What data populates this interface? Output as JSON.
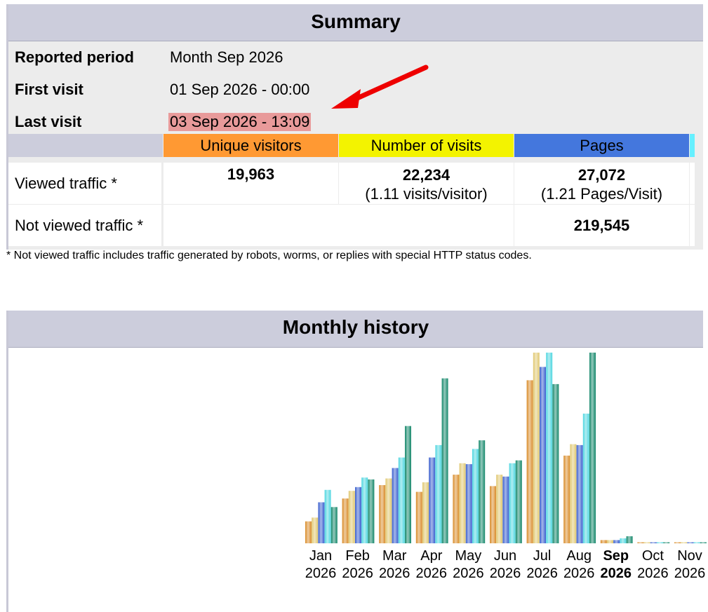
{
  "summary": {
    "title": "Summary",
    "reported_period_label": "Reported period",
    "reported_period_value": "Month Sep 2026",
    "first_visit_label": "First visit",
    "first_visit_value": "01 Sep 2026 - 00:00",
    "last_visit_label": "Last visit",
    "last_visit_value": "03 Sep 2026 - 13:09",
    "columns": [
      "Unique visitors",
      "Number of visits",
      "Pages"
    ],
    "column_colors": [
      "#ff9933",
      "#f3f300",
      "#4477dd",
      "#66f0ff"
    ],
    "rows": {
      "viewed": {
        "label": "Viewed traffic *",
        "unique_visitors": "19,963",
        "visits": "22,234",
        "visits_sub": "(1.11 visits/visitor)",
        "pages": "27,072",
        "pages_sub": "(1.21 Pages/Visit)"
      },
      "not_viewed": {
        "label": "Not viewed traffic *",
        "pages": "219,545"
      }
    },
    "footnote": "* Not viewed traffic includes traffic generated by robots, worms, or replies with special HTTP status codes.",
    "highlight_color": "#e89a9a",
    "arrow_color": "#ee0000"
  },
  "monthly": {
    "title": "Monthly history",
    "current_month": "Sep",
    "months": [
      {
        "m": "Jan",
        "y": "2026"
      },
      {
        "m": "Feb",
        "y": "2026"
      },
      {
        "m": "Mar",
        "y": "2026"
      },
      {
        "m": "Apr",
        "y": "2026"
      },
      {
        "m": "May",
        "y": "2026"
      },
      {
        "m": "Jun",
        "y": "2026"
      },
      {
        "m": "Jul",
        "y": "2026"
      },
      {
        "m": "Aug",
        "y": "2026"
      },
      {
        "m": "Sep",
        "y": "2026"
      },
      {
        "m": "Oct",
        "y": "2026"
      },
      {
        "m": "Nov",
        "y": "2026"
      }
    ]
  },
  "chart_data": {
    "type": "bar",
    "title": "Monthly history",
    "categories": [
      "Jan 2026",
      "Feb 2026",
      "Mar 2026",
      "Apr 2026",
      "May 2026",
      "Jun 2026",
      "Jul 2026",
      "Aug 2026",
      "Sep 2026",
      "Oct 2026",
      "Nov 2026"
    ],
    "ylim": [
      0,
      100
    ],
    "grid": false,
    "series": [
      {
        "key": "unique",
        "color": "#d98c2a",
        "values": [
          11.5,
          23.5,
          30.5,
          27,
          36,
          30,
          85.5,
          46,
          1.7,
          0.5,
          0.5
        ]
      },
      {
        "key": "visits",
        "color": "#e0c870",
        "values": [
          13.5,
          27.5,
          34,
          32,
          42,
          36,
          100,
          52,
          1.7,
          0.5,
          0.5
        ]
      },
      {
        "key": "pages",
        "color": "#3a5fcf",
        "values": [
          21.5,
          29.5,
          39.5,
          45,
          41.5,
          35,
          92.5,
          51.5,
          1.7,
          0.5,
          0.5
        ]
      },
      {
        "key": "hits",
        "color": "#4fd6e0",
        "values": [
          28,
          34.5,
          45,
          51.5,
          49.5,
          42,
          100,
          68,
          2.6,
          0.5,
          0.5
        ]
      },
      {
        "key": "bandwidth",
        "color": "#14876a",
        "values": [
          19,
          33.5,
          61.5,
          86.5,
          54,
          43.5,
          83.5,
          100,
          3.7,
          0.5,
          0.5
        ]
      }
    ]
  }
}
